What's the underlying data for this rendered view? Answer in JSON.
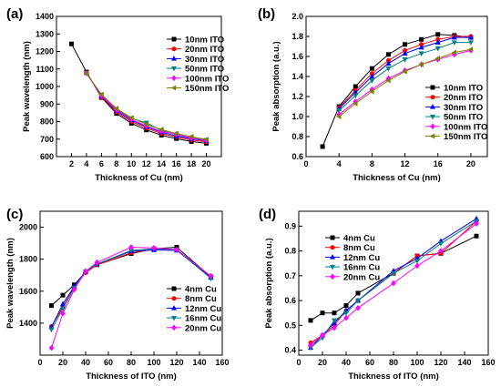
{
  "chart_data": [
    {
      "panel": "(a)",
      "type": "line",
      "xlabel": "Thickness of Cu (nm)",
      "ylabel": "Peak wavelength (nm)",
      "xlim": [
        0,
        22
      ],
      "ylim": [
        600,
        1400
      ],
      "xticks": [
        2,
        4,
        6,
        8,
        10,
        12,
        14,
        16,
        18,
        20
      ],
      "yticks": [
        600,
        700,
        800,
        900,
        1000,
        1100,
        1200,
        1300,
        1400
      ],
      "legend": "top-right",
      "series": [
        {
          "name": "10nm ITO",
          "color": "#000000",
          "marker": "square",
          "x": [
            2,
            4,
            6,
            8,
            10,
            12,
            14,
            16,
            18,
            20
          ],
          "y": [
            1243,
            1083,
            937,
            846,
            790,
            752,
            722,
            703,
            686,
            676
          ]
        },
        {
          "name": "20nm ITO",
          "color": "#ff0000",
          "marker": "circle",
          "x": [
            4,
            6,
            8,
            10,
            12,
            14,
            16,
            18,
            20
          ],
          "y": [
            1080,
            940,
            855,
            800,
            762,
            732,
            712,
            695,
            684
          ]
        },
        {
          "name": "30nm ITO",
          "color": "#0000ff",
          "marker": "triangle-up",
          "x": [
            4,
            6,
            8,
            10,
            12,
            14,
            16,
            18,
            20
          ],
          "y": [
            1078,
            945,
            862,
            808,
            770,
            740,
            718,
            702,
            690
          ]
        },
        {
          "name": "50nm ITO",
          "color": "#008080",
          "marker": "triangle-down",
          "x": [
            4,
            6,
            8,
            10,
            12,
            14,
            16,
            18,
            20
          ],
          "y": [
            1076,
            952,
            870,
            818,
            793,
            750,
            725,
            708,
            694
          ]
        },
        {
          "name": "100nm ITO",
          "color": "#ff00ff",
          "marker": "diamond",
          "x": [
            4,
            6,
            8,
            10,
            12,
            14,
            16,
            18,
            20
          ],
          "y": [
            1075,
            948,
            866,
            812,
            775,
            744,
            728,
            706,
            691
          ]
        },
        {
          "name": "150nm ITO",
          "color": "#808000",
          "marker": "triangle-left",
          "x": [
            4,
            6,
            8,
            10,
            12,
            14,
            16,
            18,
            20
          ],
          "y": [
            1074,
            955,
            875,
            822,
            784,
            755,
            732,
            714,
            698
          ]
        }
      ]
    },
    {
      "panel": "(b)",
      "type": "line",
      "xlabel": "Thickness of Cu (nm)",
      "ylabel": "Peak absorption (a.u.)",
      "xlim": [
        0,
        22
      ],
      "ylim": [
        0.6,
        2.0
      ],
      "xticks": [
        0,
        4,
        8,
        12,
        16,
        20
      ],
      "yticks": [
        0.6,
        0.8,
        1.0,
        1.2,
        1.4,
        1.6,
        1.8,
        2.0
      ],
      "legend": "bottom-right",
      "series": [
        {
          "name": "10nm ITO",
          "color": "#000000",
          "marker": "square",
          "x": [
            2,
            4,
            6,
            8,
            10,
            12,
            14,
            16,
            18,
            20
          ],
          "y": [
            0.7,
            1.1,
            1.3,
            1.48,
            1.62,
            1.72,
            1.77,
            1.82,
            1.81,
            1.79
          ]
        },
        {
          "name": "20nm ITO",
          "color": "#ff0000",
          "marker": "circle",
          "x": [
            4,
            6,
            8,
            10,
            12,
            14,
            16,
            18,
            20
          ],
          "y": [
            1.09,
            1.26,
            1.43,
            1.56,
            1.66,
            1.72,
            1.77,
            1.8,
            1.8
          ]
        },
        {
          "name": "30nm ITO",
          "color": "#0000ff",
          "marker": "triangle-up",
          "x": [
            4,
            6,
            8,
            10,
            12,
            14,
            16,
            18,
            20
          ],
          "y": [
            1.08,
            1.24,
            1.4,
            1.53,
            1.63,
            1.69,
            1.74,
            1.79,
            1.79
          ]
        },
        {
          "name": "50nm ITO",
          "color": "#008080",
          "marker": "triangle-down",
          "x": [
            4,
            6,
            8,
            10,
            12,
            14,
            16,
            18,
            20
          ],
          "y": [
            1.06,
            1.21,
            1.36,
            1.48,
            1.57,
            1.63,
            1.68,
            1.74,
            1.74
          ]
        },
        {
          "name": "100nm ITO",
          "color": "#ff00ff",
          "marker": "diamond",
          "x": [
            4,
            6,
            8,
            10,
            12,
            14,
            16,
            18,
            20
          ],
          "y": [
            1.02,
            1.15,
            1.27,
            1.38,
            1.46,
            1.52,
            1.57,
            1.62,
            1.66
          ]
        },
        {
          "name": "150nm ITO",
          "color": "#808000",
          "marker": "triangle-left",
          "x": [
            4,
            6,
            8,
            10,
            12,
            14,
            16,
            18,
            20
          ],
          "y": [
            1.0,
            1.13,
            1.25,
            1.36,
            1.45,
            1.52,
            1.58,
            1.64,
            1.67
          ]
        }
      ]
    },
    {
      "panel": "(c)",
      "type": "line",
      "xlabel": "Thickness of ITO (nm)",
      "ylabel": "Peak wavelength (nm)",
      "xlim": [
        0,
        160
      ],
      "ylim": [
        1200,
        2100
      ],
      "xticks": [
        0,
        20,
        40,
        60,
        80,
        100,
        120,
        140,
        160
      ],
      "yticks": [
        1400,
        1600,
        1800,
        2000
      ],
      "legend": "bottom-right",
      "series": [
        {
          "name": "4nm Cu",
          "color": "#000000",
          "marker": "square",
          "x": [
            10,
            20,
            30,
            40,
            50,
            80,
            100,
            120,
            150
          ],
          "y": [
            1510,
            1575,
            1640,
            1720,
            1765,
            1835,
            1865,
            1875,
            1690
          ]
        },
        {
          "name": "8nm Cu",
          "color": "#ff0000",
          "marker": "circle",
          "x": [
            10,
            20,
            30,
            40,
            50,
            80,
            100,
            120,
            150
          ],
          "y": [
            1380,
            1500,
            1625,
            1715,
            1765,
            1840,
            1862,
            1860,
            1690
          ]
        },
        {
          "name": "12nm Cu",
          "color": "#0000ff",
          "marker": "triangle-up",
          "x": [
            10,
            20,
            30,
            40,
            50,
            80,
            100,
            120,
            150
          ],
          "y": [
            1375,
            1520,
            1630,
            1725,
            1770,
            1850,
            1858,
            1855,
            1685
          ]
        },
        {
          "name": "16nm Cu",
          "color": "#008080",
          "marker": "triangle-down",
          "x": [
            10,
            20,
            30,
            40,
            50,
            80,
            100,
            120,
            150
          ],
          "y": [
            1360,
            1490,
            1620,
            1720,
            1770,
            1855,
            1865,
            1858,
            1680
          ]
        },
        {
          "name": "20nm Cu",
          "color": "#ff00ff",
          "marker": "diamond",
          "x": [
            10,
            20,
            30,
            40,
            50,
            80,
            100,
            120,
            150
          ],
          "y": [
            1245,
            1460,
            1610,
            1725,
            1780,
            1875,
            1870,
            1860,
            1695
          ]
        }
      ]
    },
    {
      "panel": "(d)",
      "type": "line",
      "xlabel": "Thickness of ITO (nm)",
      "ylabel": "Peak absorption (a.u.)",
      "xlim": [
        0,
        160
      ],
      "ylim": [
        0.38,
        0.96
      ],
      "xticks": [
        0,
        20,
        40,
        60,
        80,
        100,
        120,
        140,
        160
      ],
      "yticks": [
        0.4,
        0.5,
        0.6,
        0.7,
        0.8,
        0.9
      ],
      "legend": "top-left",
      "series": [
        {
          "name": "4nm Cu",
          "color": "#000000",
          "marker": "square",
          "x": [
            10,
            20,
            30,
            40,
            50,
            80,
            100,
            120,
            150
          ],
          "y": [
            0.52,
            0.55,
            0.55,
            0.58,
            0.63,
            0.71,
            0.78,
            0.79,
            0.86
          ]
        },
        {
          "name": "8nm Cu",
          "color": "#ff0000",
          "marker": "circle",
          "x": [
            10,
            20,
            30,
            40,
            50,
            80,
            100,
            120,
            150
          ],
          "y": [
            0.43,
            0.46,
            0.5,
            0.56,
            0.6,
            0.71,
            0.78,
            0.79,
            0.92
          ]
        },
        {
          "name": "12nm Cu",
          "color": "#0000ff",
          "marker": "triangle-up",
          "x": [
            10,
            20,
            30,
            40,
            50,
            80,
            100,
            120,
            150
          ],
          "y": [
            0.41,
            0.46,
            0.51,
            0.56,
            0.6,
            0.72,
            0.77,
            0.84,
            0.93
          ]
        },
        {
          "name": "16nm Cu",
          "color": "#008080",
          "marker": "triangle-down",
          "x": [
            10,
            20,
            30,
            40,
            50,
            80,
            100,
            120,
            150
          ],
          "y": [
            0.41,
            0.45,
            0.52,
            0.55,
            0.6,
            0.71,
            0.76,
            0.83,
            0.92
          ]
        },
        {
          "name": "20nm Cu",
          "color": "#ff00ff",
          "marker": "diamond",
          "x": [
            10,
            20,
            30,
            40,
            50,
            80,
            100,
            120,
            150
          ],
          "y": [
            0.42,
            0.46,
            0.49,
            0.53,
            0.57,
            0.67,
            0.74,
            0.8,
            0.91
          ]
        }
      ]
    }
  ]
}
